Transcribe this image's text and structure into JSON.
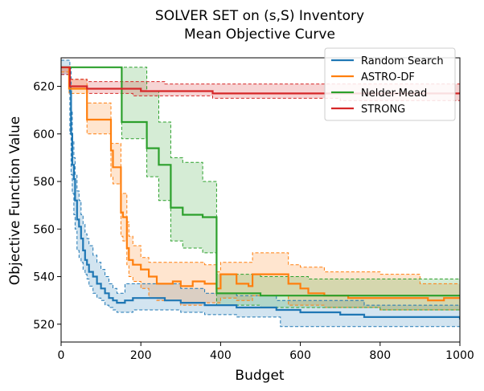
{
  "chart_data": {
    "type": "line",
    "title_lines": [
      "SOLVER SET on (s,S) Inventory",
      "Mean Objective Curve"
    ],
    "xlabel": "Budget",
    "ylabel": "Objective Function Value",
    "xlim": [
      0,
      1000
    ],
    "ylim": [
      512.5,
      632
    ],
    "xticks": [
      0,
      200,
      400,
      600,
      800,
      1000
    ],
    "yticks": [
      520,
      540,
      560,
      580,
      600,
      620
    ],
    "grid": false,
    "legend_position": "top-right",
    "series": [
      {
        "name": "Random Search",
        "color": "#1f77b4",
        "step": true,
        "mean": [
          [
            0,
            628
          ],
          [
            18,
            628
          ],
          [
            22,
            618
          ],
          [
            25,
            600
          ],
          [
            28,
            587
          ],
          [
            32,
            581
          ],
          [
            35,
            572
          ],
          [
            40,
            564
          ],
          [
            45,
            561
          ],
          [
            50,
            556
          ],
          [
            55,
            551
          ],
          [
            60,
            547
          ],
          [
            65,
            545
          ],
          [
            70,
            542
          ],
          [
            80,
            540
          ],
          [
            90,
            537
          ],
          [
            100,
            535
          ],
          [
            110,
            533
          ],
          [
            120,
            531
          ],
          [
            130,
            530
          ],
          [
            140,
            529
          ],
          [
            160,
            530
          ],
          [
            180,
            531
          ],
          [
            260,
            530
          ],
          [
            300,
            529
          ],
          [
            360,
            528
          ],
          [
            440,
            527
          ],
          [
            540,
            526
          ],
          [
            600,
            525
          ],
          [
            700,
            524
          ],
          [
            760,
            523
          ],
          [
            820,
            523
          ],
          [
            1000,
            522
          ]
        ],
        "lower": [
          [
            0,
            625
          ],
          [
            18,
            625
          ],
          [
            22,
            600
          ],
          [
            25,
            583
          ],
          [
            28,
            575
          ],
          [
            32,
            566
          ],
          [
            35,
            560
          ],
          [
            40,
            551
          ],
          [
            45,
            548
          ],
          [
            50,
            546
          ],
          [
            55,
            543
          ],
          [
            60,
            541
          ],
          [
            65,
            539
          ],
          [
            70,
            536
          ],
          [
            80,
            533
          ],
          [
            90,
            531
          ],
          [
            100,
            530
          ],
          [
            110,
            528
          ],
          [
            120,
            527
          ],
          [
            130,
            526
          ],
          [
            140,
            525
          ],
          [
            180,
            526
          ],
          [
            260,
            526
          ],
          [
            300,
            525
          ],
          [
            360,
            524
          ],
          [
            440,
            523
          ],
          [
            550,
            519
          ],
          [
            700,
            519
          ],
          [
            760,
            519
          ],
          [
            1000,
            519
          ]
        ],
        "upper": [
          [
            0,
            631
          ],
          [
            18,
            631
          ],
          [
            22,
            628
          ],
          [
            25,
            610
          ],
          [
            28,
            597
          ],
          [
            32,
            590
          ],
          [
            35,
            583
          ],
          [
            40,
            576
          ],
          [
            45,
            572
          ],
          [
            50,
            566
          ],
          [
            55,
            562
          ],
          [
            60,
            558
          ],
          [
            65,
            556
          ],
          [
            70,
            553
          ],
          [
            80,
            549
          ],
          [
            90,
            546
          ],
          [
            100,
            543
          ],
          [
            110,
            540
          ],
          [
            120,
            537
          ],
          [
            130,
            535
          ],
          [
            140,
            533
          ],
          [
            160,
            537
          ],
          [
            240,
            537
          ],
          [
            300,
            535
          ],
          [
            360,
            533
          ],
          [
            440,
            532
          ],
          [
            540,
            530
          ],
          [
            600,
            530
          ],
          [
            760,
            528
          ],
          [
            1000,
            527
          ]
        ]
      },
      {
        "name": "ASTRO-DF",
        "color": "#ff7f0e",
        "step": true,
        "mean": [
          [
            0,
            628
          ],
          [
            20,
            619
          ],
          [
            60,
            619
          ],
          [
            65,
            606
          ],
          [
            120,
            606
          ],
          [
            125,
            593
          ],
          [
            130,
            586
          ],
          [
            145,
            586
          ],
          [
            150,
            567
          ],
          [
            155,
            565
          ],
          [
            165,
            552
          ],
          [
            170,
            547
          ],
          [
            180,
            545
          ],
          [
            200,
            543
          ],
          [
            220,
            540
          ],
          [
            240,
            537
          ],
          [
            280,
            538
          ],
          [
            300,
            536
          ],
          [
            330,
            538
          ],
          [
            360,
            537
          ],
          [
            390,
            535
          ],
          [
            400,
            541
          ],
          [
            440,
            537
          ],
          [
            470,
            536
          ],
          [
            480,
            541
          ],
          [
            570,
            537
          ],
          [
            600,
            535
          ],
          [
            620,
            533
          ],
          [
            660,
            532
          ],
          [
            720,
            531
          ],
          [
            800,
            531
          ],
          [
            860,
            531
          ],
          [
            920,
            530
          ],
          [
            960,
            531
          ],
          [
            1000,
            531
          ]
        ],
        "lower": [
          [
            0,
            626
          ],
          [
            20,
            617
          ],
          [
            60,
            617
          ],
          [
            65,
            600
          ],
          [
            120,
            600
          ],
          [
            125,
            582
          ],
          [
            130,
            579
          ],
          [
            145,
            579
          ],
          [
            150,
            557
          ],
          [
            155,
            555
          ],
          [
            165,
            545
          ],
          [
            170,
            540
          ],
          [
            180,
            538
          ],
          [
            200,
            535
          ],
          [
            220,
            531
          ],
          [
            240,
            530
          ],
          [
            300,
            528
          ],
          [
            360,
            529
          ],
          [
            400,
            531
          ],
          [
            440,
            530
          ],
          [
            480,
            532
          ],
          [
            570,
            528
          ],
          [
            600,
            528
          ],
          [
            660,
            527
          ],
          [
            800,
            526
          ],
          [
            900,
            526
          ],
          [
            1000,
            526
          ]
        ],
        "upper": [
          [
            0,
            628
          ],
          [
            20,
            623
          ],
          [
            60,
            623
          ],
          [
            65,
            613
          ],
          [
            120,
            613
          ],
          [
            125,
            596
          ],
          [
            130,
            596
          ],
          [
            145,
            596
          ],
          [
            150,
            575
          ],
          [
            155,
            575
          ],
          [
            165,
            563
          ],
          [
            170,
            557
          ],
          [
            180,
            553
          ],
          [
            200,
            548
          ],
          [
            220,
            546
          ],
          [
            240,
            546
          ],
          [
            320,
            546
          ],
          [
            360,
            545
          ],
          [
            390,
            542
          ],
          [
            400,
            546
          ],
          [
            480,
            550
          ],
          [
            570,
            545
          ],
          [
            600,
            544
          ],
          [
            660,
            542
          ],
          [
            800,
            541
          ],
          [
            900,
            537
          ],
          [
            1000,
            537
          ]
        ]
      },
      {
        "name": "Nelder-Mead",
        "color": "#2ca02c",
        "step": true,
        "mean": [
          [
            0,
            628
          ],
          [
            20,
            628
          ],
          [
            150,
            628
          ],
          [
            152,
            605
          ],
          [
            210,
            605
          ],
          [
            215,
            594
          ],
          [
            240,
            594
          ],
          [
            245,
            587
          ],
          [
            270,
            587
          ],
          [
            275,
            569
          ],
          [
            300,
            569
          ],
          [
            305,
            566
          ],
          [
            350,
            566
          ],
          [
            355,
            565
          ],
          [
            385,
            565
          ],
          [
            390,
            533
          ],
          [
            400,
            533
          ],
          [
            500,
            532
          ],
          [
            620,
            532
          ],
          [
            700,
            532
          ],
          [
            800,
            532
          ],
          [
            900,
            532
          ],
          [
            1000,
            532
          ]
        ],
        "lower": [
          [
            0,
            628
          ],
          [
            150,
            628
          ],
          [
            152,
            598
          ],
          [
            210,
            598
          ],
          [
            215,
            582
          ],
          [
            240,
            582
          ],
          [
            245,
            572
          ],
          [
            270,
            572
          ],
          [
            275,
            555
          ],
          [
            300,
            555
          ],
          [
            305,
            552
          ],
          [
            350,
            552
          ],
          [
            355,
            550
          ],
          [
            385,
            550
          ],
          [
            390,
            528
          ],
          [
            500,
            527
          ],
          [
            620,
            527
          ],
          [
            800,
            526
          ],
          [
            1000,
            526
          ]
        ],
        "upper": [
          [
            0,
            628
          ],
          [
            150,
            628
          ],
          [
            152,
            628
          ],
          [
            210,
            628
          ],
          [
            215,
            618
          ],
          [
            240,
            618
          ],
          [
            245,
            605
          ],
          [
            270,
            605
          ],
          [
            275,
            590
          ],
          [
            300,
            590
          ],
          [
            305,
            588
          ],
          [
            350,
            588
          ],
          [
            355,
            580
          ],
          [
            385,
            580
          ],
          [
            390,
            541
          ],
          [
            500,
            540
          ],
          [
            620,
            539
          ],
          [
            800,
            539
          ],
          [
            1000,
            539
          ]
        ]
      },
      {
        "name": "STRONG",
        "color": "#d62728",
        "step": true,
        "mean": [
          [
            0,
            628
          ],
          [
            20,
            628
          ],
          [
            22,
            620
          ],
          [
            60,
            620
          ],
          [
            65,
            619
          ],
          [
            100,
            619
          ],
          [
            140,
            619
          ],
          [
            180,
            619
          ],
          [
            200,
            618
          ],
          [
            260,
            618
          ],
          [
            320,
            618
          ],
          [
            380,
            617
          ],
          [
            460,
            617
          ],
          [
            540,
            617
          ],
          [
            600,
            617
          ],
          [
            700,
            617
          ],
          [
            800,
            617
          ],
          [
            1000,
            617
          ]
        ],
        "lower": [
          [
            0,
            625
          ],
          [
            20,
            625
          ],
          [
            22,
            619
          ],
          [
            60,
            619
          ],
          [
            65,
            617
          ],
          [
            100,
            617
          ],
          [
            180,
            616
          ],
          [
            260,
            616
          ],
          [
            380,
            615
          ],
          [
            540,
            615
          ],
          [
            700,
            614
          ],
          [
            1000,
            614
          ]
        ],
        "upper": [
          [
            0,
            628
          ],
          [
            20,
            628
          ],
          [
            22,
            623
          ],
          [
            60,
            623
          ],
          [
            65,
            622
          ],
          [
            100,
            622
          ],
          [
            180,
            622
          ],
          [
            260,
            621
          ],
          [
            380,
            621
          ],
          [
            540,
            621
          ],
          [
            700,
            621
          ],
          [
            1000,
            620
          ]
        ]
      }
    ]
  }
}
